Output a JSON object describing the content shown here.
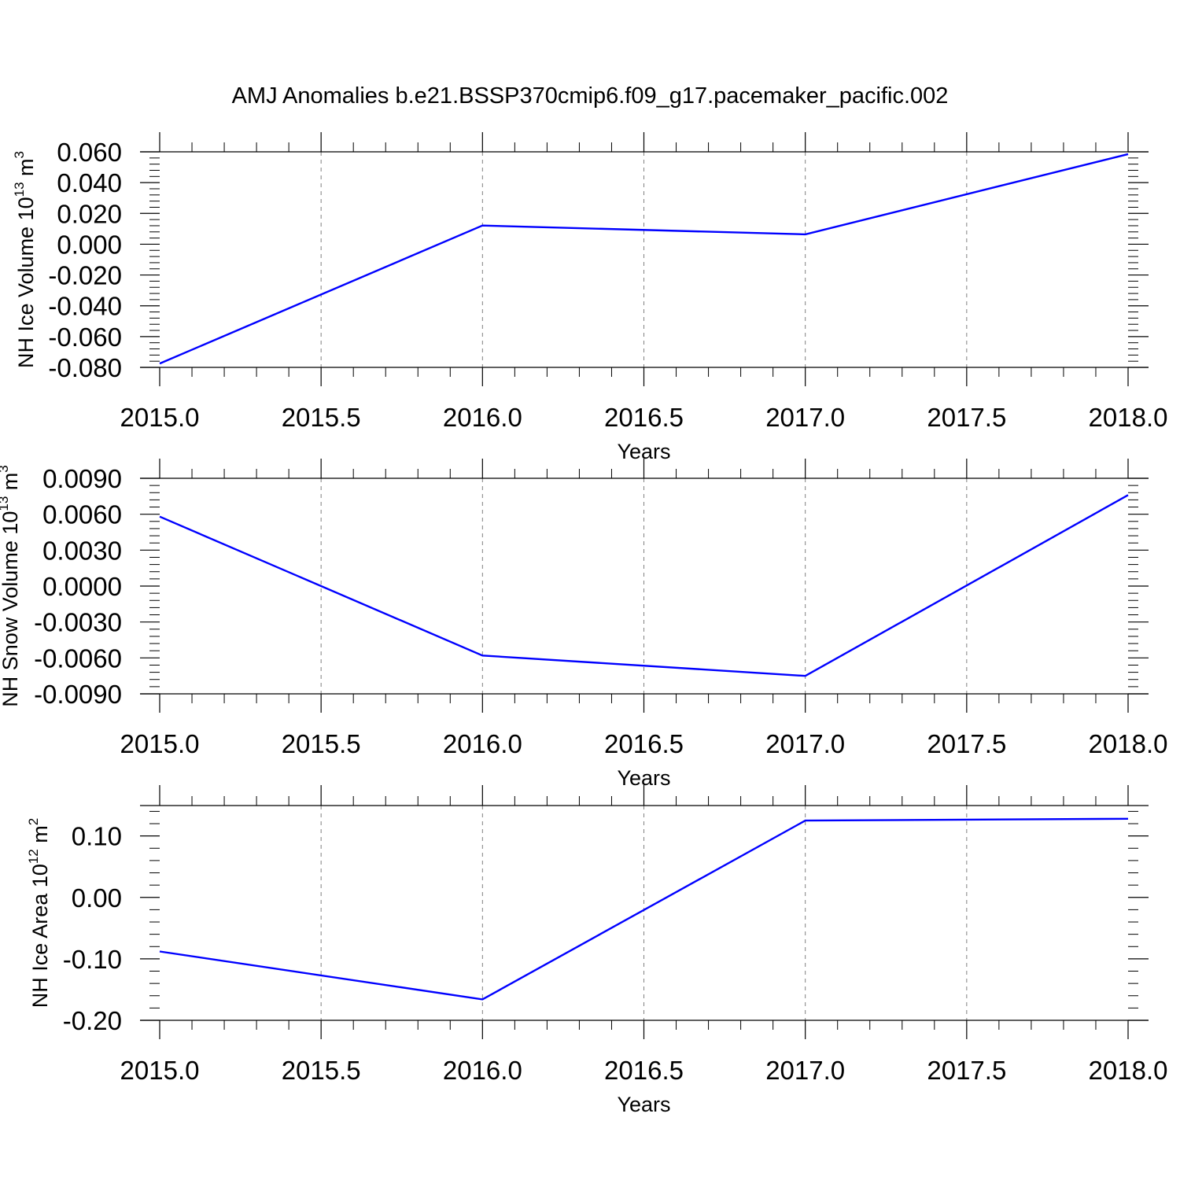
{
  "title": "AMJ Anomalies b.e21.BSSP370cmip6.f09_g17.pacemaker_pacific.002",
  "colors": {
    "line": "#0000ff",
    "axis": "#000000",
    "grid": "#808080"
  },
  "chart_data": [
    {
      "type": "line",
      "xlabel": "Years",
      "ylabel": {
        "main": "NH Ice Volume 10",
        "exp": "13",
        "unit": " m",
        "unit_exp": "3"
      },
      "xlim": [
        2015.0,
        2018.0
      ],
      "ylim": [
        -0.08,
        0.06
      ],
      "xticks": [
        "2015.0",
        "2015.5",
        "2016.0",
        "2016.5",
        "2017.0",
        "2017.5",
        "2018.0"
      ],
      "yticks": [
        "-0.080",
        "-0.060",
        "-0.040",
        "-0.020",
        "0.000",
        "0.020",
        "0.040",
        "0.060"
      ],
      "x": [
        2015,
        2016,
        2017,
        2018
      ],
      "y": [
        -0.0775,
        0.0121,
        0.0064,
        0.0585
      ],
      "grid": "vertical dashed at x major ticks"
    },
    {
      "type": "line",
      "xlabel": "Years",
      "ylabel": {
        "main": "NH Snow Volume 10",
        "exp": "13",
        "unit": " m",
        "unit_exp": "3"
      },
      "xlim": [
        2015.0,
        2018.0
      ],
      "ylim": [
        -0.009,
        0.009
      ],
      "xticks": [
        "2015.0",
        "2015.5",
        "2016.0",
        "2016.5",
        "2017.0",
        "2017.5",
        "2018.0"
      ],
      "yticks": [
        "-0.0090",
        "-0.0060",
        "-0.0030",
        "0.0000",
        "0.0030",
        "0.0060",
        "0.0090"
      ],
      "x": [
        2015,
        2016,
        2017,
        2018
      ],
      "y": [
        0.0058,
        -0.0058,
        -0.0075,
        0.0076
      ],
      "grid": "vertical dashed at x major ticks"
    },
    {
      "type": "line",
      "xlabel": "Years",
      "ylabel": {
        "main": "NH Ice Area 10",
        "exp": "12",
        "unit": " m",
        "unit_exp": "2"
      },
      "xlim": [
        2015.0,
        2018.0
      ],
      "ylim": [
        -0.2,
        0.15
      ],
      "xticks": [
        "2015.0",
        "2015.5",
        "2016.0",
        "2016.5",
        "2017.0",
        "2017.5",
        "2018.0"
      ],
      "yticks": [
        "-0.20",
        "-0.10",
        "0.00",
        "0.10"
      ],
      "x": [
        2015,
        2016,
        2017,
        2018
      ],
      "y": [
        -0.088,
        -0.166,
        0.125,
        0.128
      ],
      "grid": "vertical dashed at x major ticks"
    }
  ]
}
